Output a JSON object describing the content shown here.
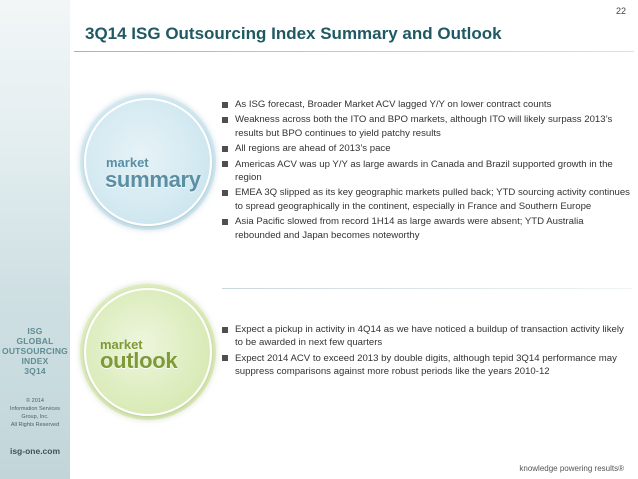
{
  "page": {
    "number": "22",
    "title": "3Q14 ISG Outsourcing Index Summary and Outlook",
    "tagline": "knowledge powering results®"
  },
  "sidebar": {
    "logo_lines": [
      "ISG",
      "GLOBAL",
      "OUTSOURCING",
      "INDEX",
      "3Q14"
    ],
    "copyright_lines": [
      "© 2014",
      "Information Services",
      "Group, Inc.",
      "All Rights Reserved"
    ],
    "url": "isg-one.com"
  },
  "summary": {
    "small_label": "market",
    "big_label": "summary",
    "bullets": [
      "As ISG forecast, Broader Market ACV lagged Y/Y on lower contract counts",
      "Weakness across both the ITO and BPO markets, although ITO will likely surpass 2013’s results but BPO continues to yield patchy results",
      "All regions are ahead of 2013’s pace",
      "Americas ACV was up Y/Y as large awards in Canada and Brazil supported growth in the region",
      "EMEA 3Q slipped as its key  geographic markets pulled back; YTD sourcing activity continues to spread geographically in the continent, especially in France and Southern Europe",
      "Asia Pacific slowed from record 1H14 as large awards were absent; YTD Australia rebounded and Japan becomes noteworthy"
    ]
  },
  "outlook": {
    "small_label": "market",
    "big_label": "outlook",
    "bullets": [
      "Expect a pickup in activity in 4Q14 as we have noticed a buildup of transaction activity likely to be awarded in next few quarters",
      "Expect 2014 ACV to exceed 2013 by double digits, although tepid 3Q14 performance may suppress comparisons against more robust periods like the years 2010-12"
    ]
  },
  "colors": {
    "title": "#1f5963",
    "summary_accent": "#5a8fa4",
    "outlook_accent": "#7f9a38"
  }
}
